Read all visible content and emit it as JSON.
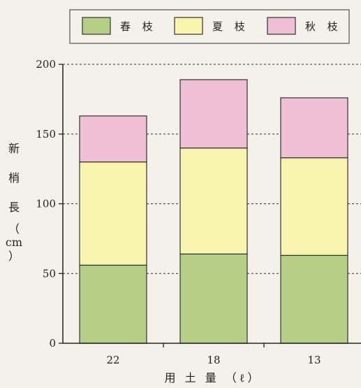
{
  "chart_data": {
    "type": "bar",
    "stacked": true,
    "categories": [
      "22",
      "18",
      "13"
    ],
    "series": [
      {
        "name": "春 枝",
        "values": [
          56,
          64,
          63
        ],
        "color": "#b6cf86"
      },
      {
        "name": "夏 枝",
        "values": [
          74,
          76,
          70
        ],
        "color": "#f9f3b0"
      },
      {
        "name": "秋 枝",
        "values": [
          33,
          49,
          43
        ],
        "color": "#efbfd6"
      }
    ],
    "ylim": [
      0,
      200
    ],
    "yticks": [
      0,
      50,
      100,
      150,
      200
    ],
    "ylabel": "新梢長(cm)",
    "ylabel_chars": [
      "新",
      "梢",
      "長",
      "（",
      "cm",
      "）"
    ],
    "xlabel": "用 土 量 （ℓ）",
    "grid": "dashed-horizontal",
    "legend": "top-right"
  }
}
